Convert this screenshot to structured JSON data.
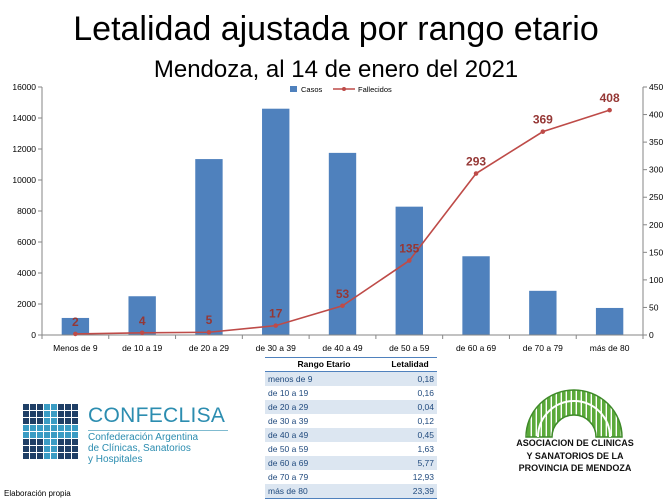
{
  "chart_data": [
    {
      "type": "bar",
      "title": "Letalidad ajustada por rango etario",
      "subtitle": "Mendoza, al 14 de enero del 2021",
      "categories": [
        "Menos de 9",
        "de 10 a 19",
        "de 20 a 29",
        "de 30 a 39",
        "de 40 a 49",
        "de 50 a 59",
        "de 60 a 69",
        "de 70 a 79",
        "más de 80"
      ],
      "series": [
        {
          "name": "Casos",
          "type": "bar",
          "axis": "left",
          "color": "#4F81BD",
          "values": [
            1100,
            2500,
            11350,
            14600,
            11750,
            8280,
            5080,
            2850,
            1745
          ]
        },
        {
          "name": "Fallecidos",
          "type": "line",
          "axis": "right",
          "color": "#BE4B48",
          "values": [
            2,
            4,
            5,
            17,
            53,
            135,
            293,
            369,
            408
          ],
          "data_labels": true
        }
      ],
      "ylim": [
        0,
        16000
      ],
      "yticks": [
        0,
        2000,
        4000,
        6000,
        8000,
        10000,
        12000,
        14000,
        16000
      ],
      "y2lim": [
        0,
        450
      ],
      "y2ticks": [
        0,
        50,
        100,
        150,
        200,
        250,
        300,
        350,
        400,
        450
      ],
      "data_label_color": "#953735",
      "grid": false,
      "legend": "top"
    },
    {
      "type": "table",
      "columns": [
        "Rango Etario",
        "Letalidad"
      ],
      "rows": [
        [
          "menos de 9",
          "0,18"
        ],
        [
          "de 10 a 19",
          "0,16"
        ],
        [
          "de 20 a 29",
          "0,04"
        ],
        [
          "de 30 a 39",
          "0,12"
        ],
        [
          "de 40 a 49",
          "0,45"
        ],
        [
          "de 50 a 59",
          "1,63"
        ],
        [
          "de 60 a 69",
          "5,77"
        ],
        [
          "de 70 a 79",
          "12,93"
        ],
        [
          "más de 80",
          "23,39"
        ]
      ]
    }
  ],
  "logos": {
    "confeclisa": {
      "name": "CONFECLISA",
      "lines": [
        "Confederación Argentina",
        "de Clínicas, Sanatorios",
        "y Hospitales"
      ]
    },
    "asociacion": {
      "lines": [
        "ASOCIACION DE CLINICAS",
        "Y SANATORIOS DE LA",
        "PROVINCIA DE MENDOZA"
      ]
    }
  },
  "footer": {
    "note": "Elaboración propia"
  },
  "colors": {
    "logo_teal": "#2C8DB0",
    "logo_navy": "#1F3F66",
    "logo_green": "#5BAA3A",
    "table_stripe": "#DCE6F1",
    "table_border": "#4F81BD",
    "table_text": "#1F497D"
  }
}
